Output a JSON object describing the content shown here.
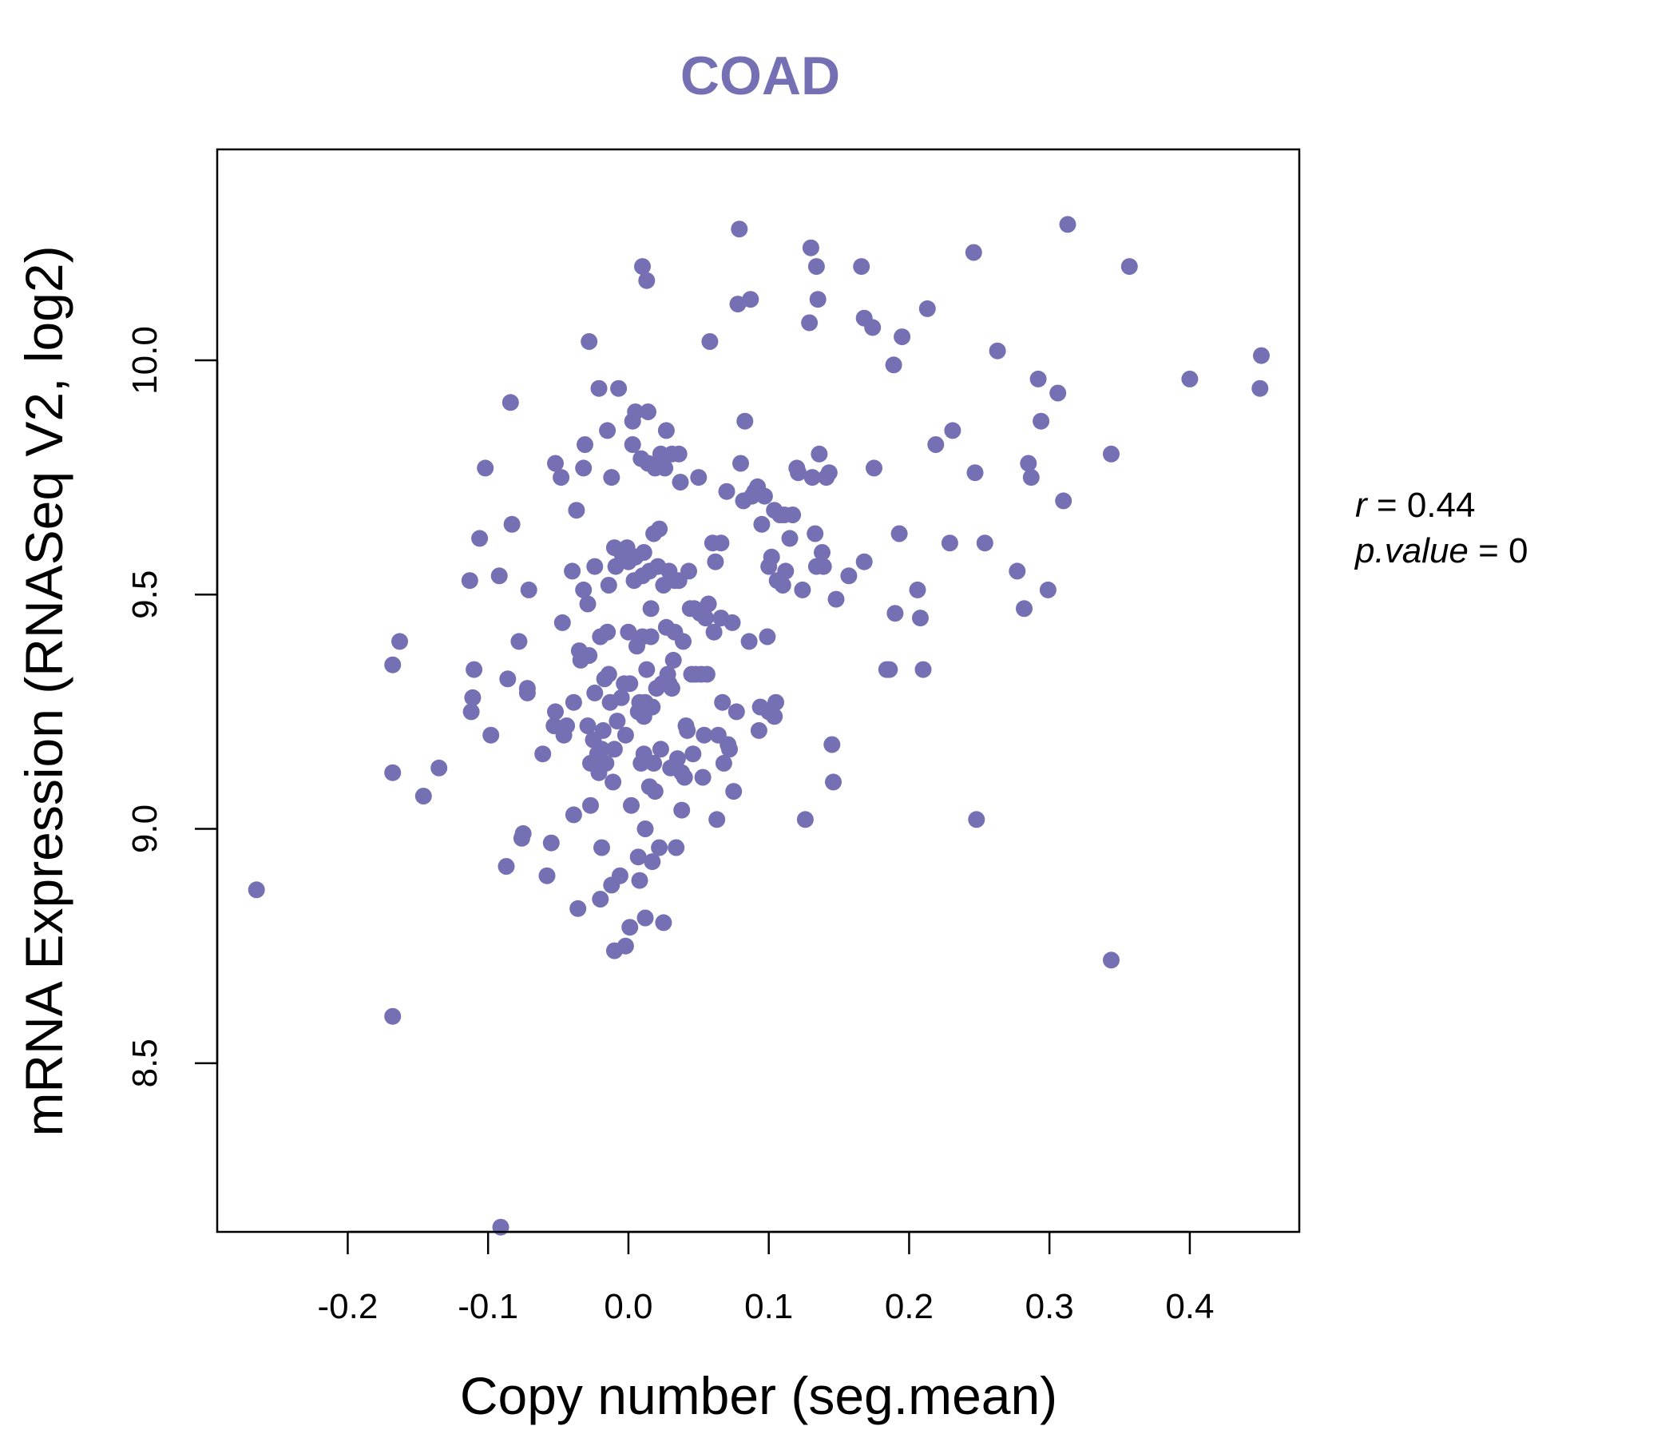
{
  "chart_data": {
    "type": "scatter",
    "title": "COAD",
    "xlabel": "Copy number (seg.mean)",
    "ylabel": "mRNA Expression (RNASeq V2, log2)",
    "xlim": [
      -0.293,
      0.478
    ],
    "ylim": [
      8.14,
      10.45
    ],
    "xticks": [
      -0.2,
      -0.1,
      0.0,
      0.1,
      0.2,
      0.3,
      0.4
    ],
    "xtick_labels": [
      "-0.2",
      "-0.1",
      "0.0",
      "0.1",
      "0.2",
      "0.3",
      "0.4"
    ],
    "yticks": [
      8.5,
      9.0,
      9.5,
      10.0
    ],
    "ytick_labels": [
      "8.5",
      "9.0",
      "9.5",
      "10.0"
    ],
    "grid": false,
    "point_color": "#7570b3",
    "stats": {
      "r_label": "r",
      "r_value": "0.44",
      "p_label": "p.value",
      "p_value": "0"
    },
    "points": [
      [
        -0.265,
        8.87
      ],
      [
        -0.168,
        8.6
      ],
      [
        -0.168,
        9.35
      ],
      [
        -0.163,
        9.4
      ],
      [
        -0.168,
        9.12
      ],
      [
        -0.146,
        9.07
      ],
      [
        -0.135,
        9.13
      ],
      [
        -0.113,
        9.53
      ],
      [
        -0.11,
        9.34
      ],
      [
        -0.111,
        9.28
      ],
      [
        -0.112,
        9.25
      ],
      [
        -0.106,
        9.62
      ],
      [
        -0.102,
        9.77
      ],
      [
        -0.098,
        9.2
      ],
      [
        -0.092,
        9.54
      ],
      [
        -0.091,
        8.15
      ],
      [
        -0.086,
        9.32
      ],
      [
        -0.087,
        8.92
      ],
      [
        -0.084,
        9.91
      ],
      [
        -0.083,
        9.65
      ],
      [
        -0.078,
        9.4
      ],
      [
        -0.076,
        8.98
      ],
      [
        -0.075,
        8.99
      ],
      [
        -0.072,
        9.3
      ],
      [
        -0.071,
        9.51
      ],
      [
        -0.072,
        9.29
      ],
      [
        -0.061,
        9.16
      ],
      [
        -0.058,
        8.9
      ],
      [
        -0.055,
        8.97
      ],
      [
        -0.053,
        9.22
      ],
      [
        -0.052,
        9.78
      ],
      [
        -0.052,
        9.25
      ],
      [
        -0.048,
        9.75
      ],
      [
        -0.047,
        9.44
      ],
      [
        -0.046,
        9.2
      ],
      [
        -0.044,
        9.22
      ],
      [
        -0.04,
        9.55
      ],
      [
        -0.039,
        9.27
      ],
      [
        -0.039,
        9.03
      ],
      [
        -0.037,
        9.68
      ],
      [
        -0.036,
        8.83
      ],
      [
        -0.035,
        9.38
      ],
      [
        -0.034,
        9.36
      ],
      [
        -0.032,
        9.51
      ],
      [
        -0.032,
        9.77
      ],
      [
        -0.031,
        9.82
      ],
      [
        -0.029,
        9.22
      ],
      [
        -0.029,
        9.48
      ],
      [
        -0.028,
        9.37
      ],
      [
        -0.028,
        10.04
      ],
      [
        -0.027,
        9.14
      ],
      [
        -0.027,
        9.05
      ],
      [
        -0.025,
        9.19
      ],
      [
        -0.024,
        9.29
      ],
      [
        -0.024,
        9.56
      ],
      [
        -0.022,
        9.16
      ],
      [
        -0.021,
        9.12
      ],
      [
        -0.021,
        9.94
      ],
      [
        -0.02,
        9.41
      ],
      [
        -0.02,
        8.85
      ],
      [
        -0.019,
        9.17
      ],
      [
        -0.019,
        8.96
      ],
      [
        -0.018,
        9.21
      ],
      [
        -0.017,
        9.32
      ],
      [
        -0.016,
        9.14
      ],
      [
        -0.015,
        9.42
      ],
      [
        -0.015,
        9.85
      ],
      [
        -0.014,
        9.52
      ],
      [
        -0.014,
        9.33
      ],
      [
        -0.013,
        9.27
      ],
      [
        -0.012,
        8.88
      ],
      [
        -0.012,
        9.75
      ],
      [
        -0.011,
        9.1
      ],
      [
        -0.01,
        9.6
      ],
      [
        -0.01,
        9.17
      ],
      [
        -0.01,
        8.74
      ],
      [
        -0.009,
        9.56
      ],
      [
        -0.008,
        9.23
      ],
      [
        -0.007,
        9.94
      ],
      [
        -0.006,
        8.9
      ],
      [
        -0.005,
        9.59
      ],
      [
        -0.005,
        9.28
      ],
      [
        -0.004,
        9.58
      ],
      [
        -0.003,
        9.31
      ],
      [
        -0.002,
        8.75
      ],
      [
        -0.002,
        9.2
      ],
      [
        -0.001,
        9.6
      ],
      [
        0.0,
        9.42
      ],
      [
        0.0,
        9.57
      ],
      [
        0.001,
        9.31
      ],
      [
        0.001,
        8.79
      ],
      [
        0.002,
        9.05
      ],
      [
        0.003,
        9.82
      ],
      [
        0.003,
        9.87
      ],
      [
        0.004,
        9.53
      ],
      [
        0.005,
        9.89
      ],
      [
        0.005,
        9.58
      ],
      [
        0.006,
        9.39
      ],
      [
        0.007,
        9.25
      ],
      [
        0.007,
        8.94
      ],
      [
        0.008,
        9.27
      ],
      [
        0.008,
        8.89
      ],
      [
        0.009,
        9.14
      ],
      [
        0.009,
        9.79
      ],
      [
        0.01,
        9.41
      ],
      [
        0.01,
        9.54
      ],
      [
        0.01,
        10.2
      ],
      [
        0.011,
        9.16
      ],
      [
        0.011,
        9.24
      ],
      [
        0.011,
        9.59
      ],
      [
        0.012,
        9.0
      ],
      [
        0.012,
        9.27
      ],
      [
        0.012,
        8.81
      ],
      [
        0.013,
        9.34
      ],
      [
        0.013,
        10.17
      ],
      [
        0.014,
        9.78
      ],
      [
        0.014,
        9.89
      ],
      [
        0.015,
        9.09
      ],
      [
        0.015,
        9.55
      ],
      [
        0.016,
        9.47
      ],
      [
        0.016,
        9.41
      ],
      [
        0.017,
        8.93
      ],
      [
        0.017,
        9.26
      ],
      [
        0.018,
        9.14
      ],
      [
        0.018,
        9.63
      ],
      [
        0.019,
        9.08
      ],
      [
        0.019,
        9.77
      ],
      [
        0.02,
        9.3
      ],
      [
        0.021,
        9.56
      ],
      [
        0.022,
        9.64
      ],
      [
        0.022,
        8.96
      ],
      [
        0.023,
        9.8
      ],
      [
        0.023,
        9.17
      ],
      [
        0.024,
        9.31
      ],
      [
        0.025,
        8.8
      ],
      [
        0.025,
        9.52
      ],
      [
        0.026,
        9.77
      ],
      [
        0.027,
        9.85
      ],
      [
        0.027,
        9.43
      ],
      [
        0.028,
        9.33
      ],
      [
        0.029,
        9.55
      ],
      [
        0.029,
        9.31
      ],
      [
        0.03,
        9.13
      ],
      [
        0.031,
        9.3
      ],
      [
        0.031,
        9.8
      ],
      [
        0.032,
        9.36
      ],
      [
        0.033,
        9.42
      ],
      [
        0.033,
        9.53
      ],
      [
        0.034,
        8.96
      ],
      [
        0.035,
        9.15
      ],
      [
        0.036,
        9.8
      ],
      [
        0.036,
        9.53
      ],
      [
        0.037,
        9.74
      ],
      [
        0.038,
        9.04
      ],
      [
        0.038,
        9.12
      ],
      [
        0.039,
        9.4
      ],
      [
        0.04,
        9.11
      ],
      [
        0.041,
        9.22
      ],
      [
        0.042,
        9.21
      ],
      [
        0.043,
        9.55
      ],
      [
        0.044,
        9.47
      ],
      [
        0.045,
        9.33
      ],
      [
        0.046,
        9.16
      ],
      [
        0.047,
        9.47
      ],
      [
        0.048,
        9.33
      ],
      [
        0.05,
        9.75
      ],
      [
        0.051,
        9.46
      ],
      [
        0.052,
        9.33
      ],
      [
        0.053,
        9.11
      ],
      [
        0.054,
        9.2
      ],
      [
        0.055,
        9.45
      ],
      [
        0.056,
        9.33
      ],
      [
        0.057,
        9.48
      ],
      [
        0.058,
        10.04
      ],
      [
        0.06,
        9.61
      ],
      [
        0.061,
        9.42
      ],
      [
        0.062,
        9.57
      ],
      [
        0.063,
        9.02
      ],
      [
        0.064,
        9.2
      ],
      [
        0.066,
        9.61
      ],
      [
        0.066,
        9.45
      ],
      [
        0.067,
        9.27
      ],
      [
        0.068,
        9.14
      ],
      [
        0.07,
        9.72
      ],
      [
        0.071,
        9.18
      ],
      [
        0.072,
        9.17
      ],
      [
        0.074,
        9.44
      ],
      [
        0.075,
        9.08
      ],
      [
        0.077,
        9.25
      ],
      [
        0.078,
        10.12
      ],
      [
        0.079,
        10.28
      ],
      [
        0.08,
        9.78
      ],
      [
        0.082,
        9.7
      ],
      [
        0.083,
        9.87
      ],
      [
        0.086,
        9.4
      ],
      [
        0.087,
        10.13
      ],
      [
        0.088,
        9.71
      ],
      [
        0.09,
        9.72
      ],
      [
        0.092,
        9.73
      ],
      [
        0.093,
        9.21
      ],
      [
        0.094,
        9.26
      ],
      [
        0.095,
        9.65
      ],
      [
        0.097,
        9.71
      ],
      [
        0.099,
        9.41
      ],
      [
        0.1,
        9.25
      ],
      [
        0.1,
        9.56
      ],
      [
        0.102,
        9.58
      ],
      [
        0.104,
        9.68
      ],
      [
        0.104,
        9.24
      ],
      [
        0.105,
        9.27
      ],
      [
        0.106,
        9.53
      ],
      [
        0.108,
        9.67
      ],
      [
        0.11,
        9.52
      ],
      [
        0.111,
        9.67
      ],
      [
        0.112,
        9.55
      ],
      [
        0.115,
        9.62
      ],
      [
        0.117,
        9.67
      ],
      [
        0.12,
        9.77
      ],
      [
        0.121,
        9.76
      ],
      [
        0.124,
        9.51
      ],
      [
        0.126,
        9.02
      ],
      [
        0.129,
        10.08
      ],
      [
        0.13,
        10.24
      ],
      [
        0.131,
        9.75
      ],
      [
        0.133,
        9.63
      ],
      [
        0.134,
        10.2
      ],
      [
        0.134,
        9.56
      ],
      [
        0.135,
        10.13
      ],
      [
        0.136,
        9.8
      ],
      [
        0.138,
        9.59
      ],
      [
        0.139,
        9.56
      ],
      [
        0.141,
        9.75
      ],
      [
        0.143,
        9.76
      ],
      [
        0.145,
        9.18
      ],
      [
        0.146,
        9.1
      ],
      [
        0.148,
        9.49
      ],
      [
        0.157,
        9.54
      ],
      [
        0.166,
        10.2
      ],
      [
        0.168,
        10.09
      ],
      [
        0.168,
        9.57
      ],
      [
        0.174,
        10.07
      ],
      [
        0.175,
        9.77
      ],
      [
        0.184,
        9.34
      ],
      [
        0.186,
        9.34
      ],
      [
        0.189,
        9.99
      ],
      [
        0.19,
        9.46
      ],
      [
        0.193,
        9.63
      ],
      [
        0.195,
        10.05
      ],
      [
        0.206,
        9.51
      ],
      [
        0.208,
        9.45
      ],
      [
        0.21,
        9.34
      ],
      [
        0.213,
        10.11
      ],
      [
        0.219,
        9.82
      ],
      [
        0.229,
        9.61
      ],
      [
        0.231,
        9.85
      ],
      [
        0.246,
        10.23
      ],
      [
        0.247,
        9.76
      ],
      [
        0.248,
        9.02
      ],
      [
        0.254,
        9.61
      ],
      [
        0.263,
        10.02
      ],
      [
        0.277,
        9.55
      ],
      [
        0.282,
        9.47
      ],
      [
        0.285,
        9.78
      ],
      [
        0.287,
        9.75
      ],
      [
        0.292,
        9.96
      ],
      [
        0.294,
        9.87
      ],
      [
        0.299,
        9.51
      ],
      [
        0.306,
        9.93
      ],
      [
        0.31,
        9.7
      ],
      [
        0.313,
        10.29
      ],
      [
        0.344,
        9.8
      ],
      [
        0.344,
        8.72
      ],
      [
        0.357,
        10.2
      ],
      [
        0.4,
        9.96
      ],
      [
        0.451,
        10.01
      ],
      [
        0.45,
        9.94
      ]
    ]
  }
}
